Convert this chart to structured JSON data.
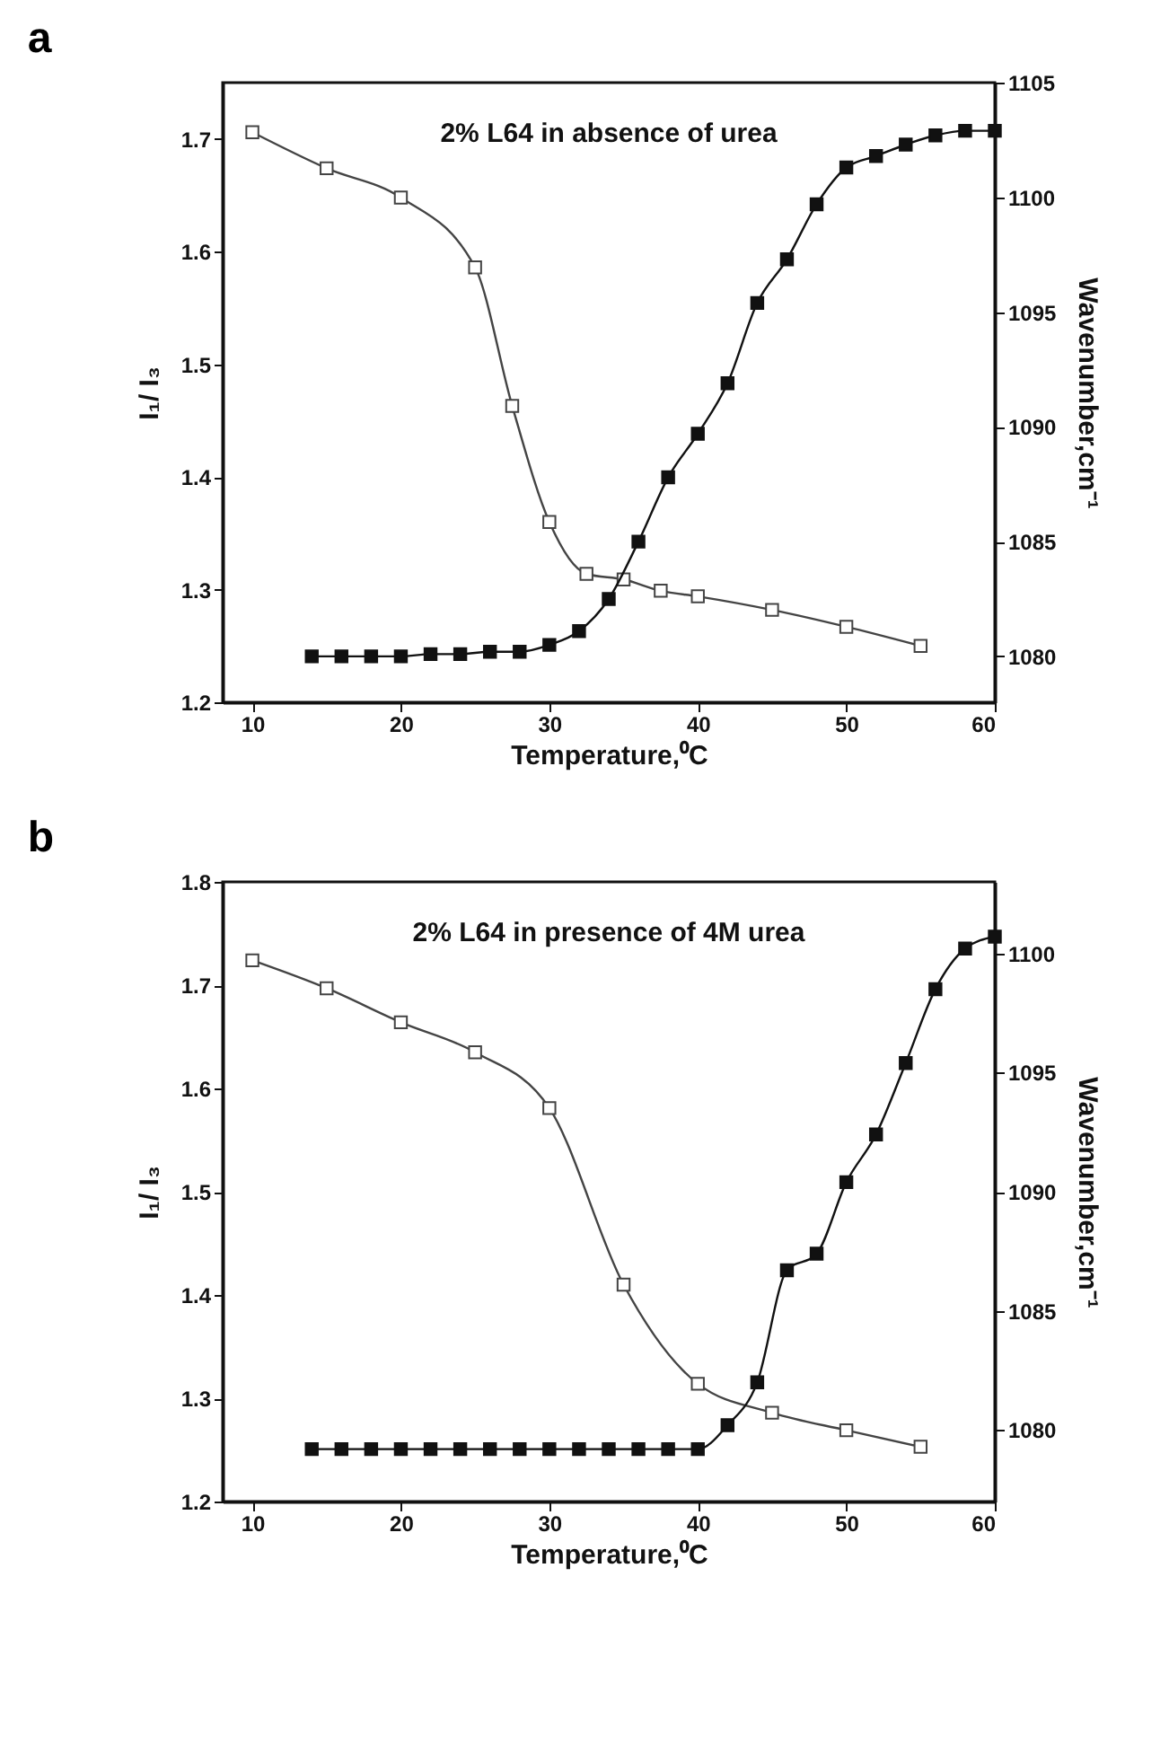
{
  "chart_data": [
    {
      "type": "line",
      "title": "a",
      "xlabel": "Temperature,⁰C",
      "ylabel": "I₁/ I₃",
      "y2label": "Wavenumber,cm⁻¹",
      "annotations": [
        "2%  L64 in absence of urea"
      ],
      "marker": "square",
      "xlim": [
        8,
        60
      ],
      "xticks": [
        10,
        20,
        30,
        40,
        50,
        60
      ],
      "ylim": [
        1.2,
        1.75
      ],
      "yticks": [
        1.2,
        1.3,
        1.4,
        1.5,
        1.6,
        1.7
      ],
      "y2lim": [
        1078,
        1105
      ],
      "y2ticks": [
        1080,
        1085,
        1090,
        1095,
        1100,
        1105
      ],
      "series": [
        {
          "color": "#444444",
          "x": [
            10,
            15,
            20,
            25,
            27.5,
            30,
            32.5,
            35,
            37.5,
            40,
            45,
            50,
            55
          ],
          "values": [
            1.706,
            1.674,
            1.648,
            1.586,
            1.463,
            1.36,
            1.314,
            1.309,
            1.299,
            1.294,
            1.282,
            1.267,
            1.25
          ]
        },
        {
          "color": "#111111",
          "axis": "y2",
          "x": [
            14,
            16,
            18,
            20,
            22,
            24,
            26,
            28,
            30,
            32,
            34,
            36,
            38,
            40,
            42,
            44,
            46,
            48,
            50,
            52,
            54,
            56,
            58,
            60
          ],
          "values": [
            1080.0,
            1080.0,
            1080.0,
            1080.0,
            1080.1,
            1080.1,
            1080.2,
            1080.2,
            1080.5,
            1081.1,
            1082.5,
            1085.0,
            1087.8,
            1089.7,
            1091.9,
            1095.4,
            1097.3,
            1099.7,
            1101.3,
            1101.8,
            1102.3,
            1102.7,
            1102.9,
            1102.9
          ]
        }
      ]
    },
    {
      "type": "line",
      "title": "b",
      "xlabel": "Temperature,⁰C",
      "ylabel": "I₁/ I₃",
      "y2label": "Wavenumber,cm⁻¹",
      "annotations": [
        "2% L64 in presence of 4M urea"
      ],
      "marker": "square",
      "xlim": [
        8,
        60
      ],
      "xticks": [
        10,
        20,
        30,
        40,
        50,
        60
      ],
      "ylim": [
        1.2,
        1.8
      ],
      "yticks": [
        1.2,
        1.3,
        1.4,
        1.5,
        1.6,
        1.7,
        1.8
      ],
      "y2lim": [
        1077,
        1103
      ],
      "y2ticks": [
        1080,
        1085,
        1090,
        1095,
        1100
      ],
      "series": [
        {
          "color": "#444444",
          "x": [
            10,
            15,
            20,
            25,
            30,
            35,
            40,
            45,
            50,
            55
          ],
          "values": [
            1.724,
            1.697,
            1.664,
            1.635,
            1.581,
            1.41,
            1.314,
            1.286,
            1.269,
            1.253
          ]
        },
        {
          "color": "#111111",
          "axis": "y2",
          "x": [
            14,
            16,
            18,
            20,
            22,
            24,
            26,
            28,
            30,
            32,
            34,
            36,
            38,
            40,
            42,
            44,
            46,
            48,
            50,
            52,
            54,
            56,
            58,
            60
          ],
          "values": [
            1079.2,
            1079.2,
            1079.2,
            1079.2,
            1079.2,
            1079.2,
            1079.2,
            1079.2,
            1079.2,
            1079.2,
            1079.2,
            1079.2,
            1079.2,
            1079.2,
            1080.2,
            1082.0,
            1086.7,
            1087.4,
            1090.4,
            1092.4,
            1095.4,
            1098.5,
            1100.2,
            1100.7
          ]
        }
      ]
    }
  ]
}
